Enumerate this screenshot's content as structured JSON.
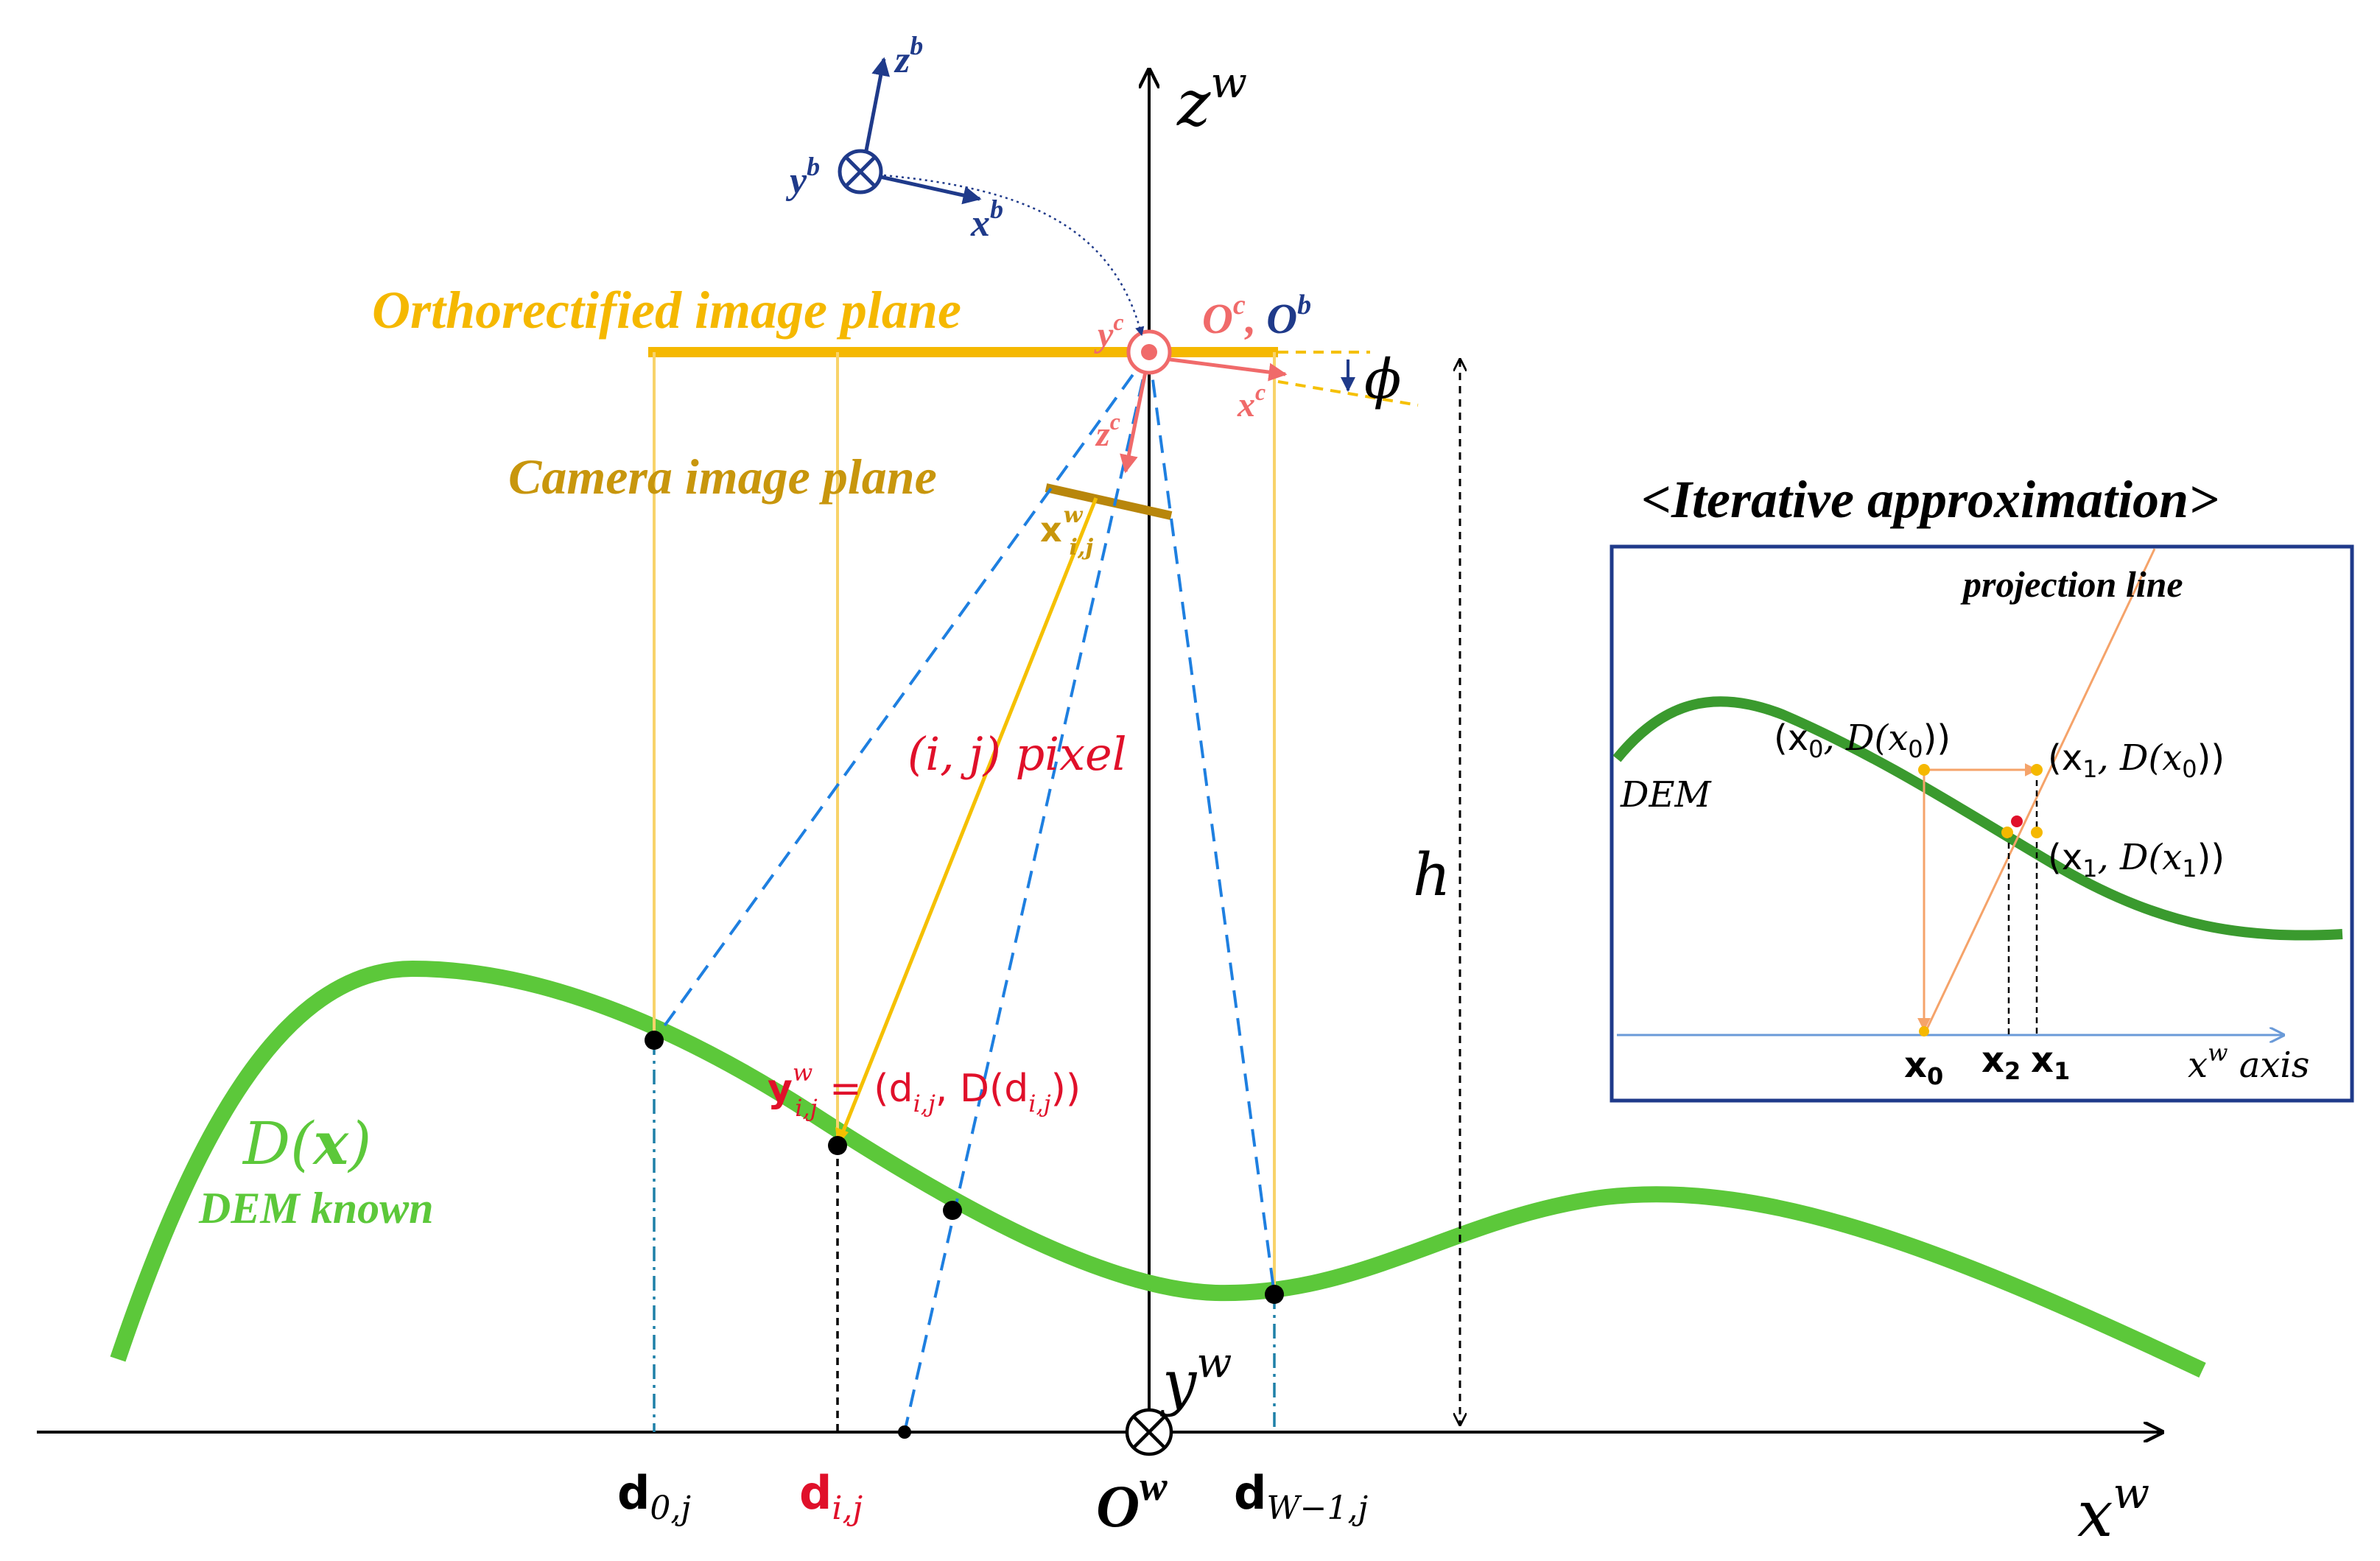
{
  "colors": {
    "ortho_plane": "#F5B800",
    "camera_plane": "#C8960C",
    "projection_yellow": "#F5C000",
    "ray_blue": "#1E7FE0",
    "dem_green": "#5CC83A",
    "dem_green_dark": "#3A9A2E",
    "body_frame": "#1F3A8A",
    "camera_frame": "#F06A6A",
    "pixel_red": "#E0102A",
    "orange": "#F5A36A",
    "inset_border": "#1F3A8A",
    "inset_axis": "#6A9AD8"
  },
  "icons": {
    "into_page": "circled-times-icon",
    "camera_origin": "circled-dot-icon",
    "arrowhead": "arrowhead-icon"
  },
  "labels": {
    "zw_axis": "z",
    "zw_sup": "w",
    "xw_axis": "x",
    "xw_sup": "w",
    "yw": "y",
    "yw_sup": "w",
    "origin_w": "O",
    "origin_w_sup": "w",
    "ortho_plane": "Orthorectified image plane",
    "camera_plane": "Camera image plane",
    "pixel": "(i, j) pixel",
    "xb": "x",
    "xb_sup": "b",
    "yb": "y",
    "yb_sup": "b",
    "zb": "z",
    "zb_sup": "b",
    "yc": "y",
    "yc_sup": "c",
    "xc": "x",
    "xc_sup": "c",
    "zc": "z",
    "zc_sup": "c",
    "oc": "O",
    "oc_sup": "c",
    "ob_sep": ",",
    "ob": "O",
    "ob_sup": "b",
    "phi": "ϕ",
    "h": "h",
    "x_ij": "x",
    "x_ij_sup": "w",
    "x_ij_sub": "i,j",
    "y_ij_lhs": "y",
    "y_ij_sup": "w",
    "y_ij_sub": "i,j",
    "y_ij_rhs": " = (d",
    "y_ij_rhs_sub": "i,j",
    "y_ij_rhs_mid": ", D(d",
    "y_ij_rhs_sub2": "i,j",
    "y_ij_rhs_end": "))",
    "dem_func_D": "D(",
    "dem_func_x": "x",
    "dem_func_close": ")",
    "dem_known": "DEM known",
    "d0": "d",
    "d0_sub": "0,j",
    "dij": "d",
    "dij_sub": "i,j",
    "dW": "d",
    "dW_sub": "W−1,j"
  },
  "inset": {
    "title": "<Iterative approximation>",
    "projection_line": "projection line",
    "dem": "DEM",
    "p0": "(x",
    "p0_sub": "0",
    "p0_mid": ", D(x",
    "p0_sub2": "0",
    "p0_end": "))",
    "p1": "(x",
    "p1_sub": "1",
    "p1_mid": ", D(x",
    "p1_sub2": "0",
    "p1_end": "))",
    "p2": "(x",
    "p2_sub": "1",
    "p2_mid": ", D(x",
    "p2_sub2": "1",
    "p2_end": "))",
    "x0": "x",
    "x0_sub": "0",
    "x2": "x",
    "x2_sub": "2",
    "x1": "x",
    "x1_sub": "1",
    "axis": "x",
    "axis_sup": "w",
    "axis_word": " axis"
  }
}
